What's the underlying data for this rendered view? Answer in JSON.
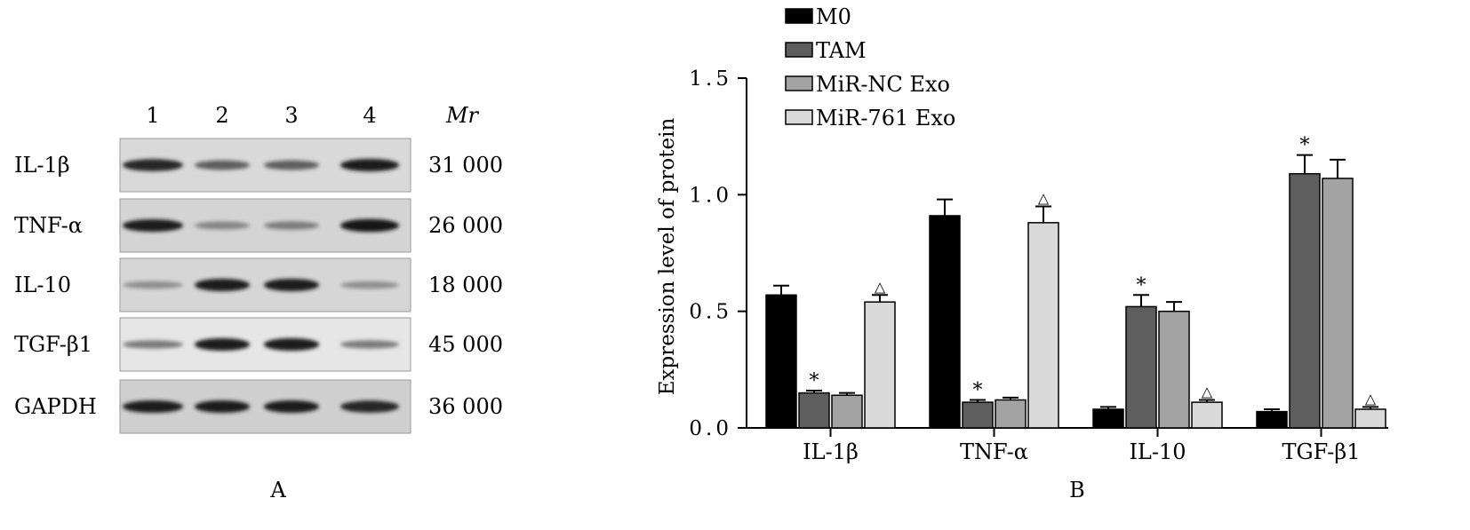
{
  "panel_a": {
    "label": "A",
    "lanes": [
      "1",
      "2",
      "3",
      "4"
    ],
    "mr_header": "Mr",
    "rows": [
      {
        "protein": "IL-1β",
        "mr": "31 000",
        "bg": "#d9d9d9",
        "band_intensity": [
          0.85,
          0.55,
          0.55,
          0.9
        ]
      },
      {
        "protein": "TNF-α",
        "mr": "26 000",
        "bg": "#d4d4d4",
        "band_intensity": [
          0.9,
          0.35,
          0.4,
          0.95
        ]
      },
      {
        "protein": "IL-10",
        "mr": "18 000",
        "bg": "#d6d6d6",
        "band_intensity": [
          0.3,
          0.9,
          0.9,
          0.3
        ]
      },
      {
        "protein": "TGF-β1",
        "mr": "45 000",
        "bg": "#e6e6e6",
        "band_intensity": [
          0.4,
          0.9,
          0.9,
          0.4
        ]
      },
      {
        "protein": "GAPDH",
        "mr": "36 000",
        "bg": "#cfcfcf",
        "band_intensity": [
          0.9,
          0.9,
          0.9,
          0.85
        ]
      }
    ]
  },
  "chart_data": {
    "type": "bar",
    "label": "B",
    "categories": [
      "IL-1β",
      "TNF-α",
      "IL-10",
      "TGF-β1"
    ],
    "ylabel": "Expression level of protein",
    "ylim": [
      0,
      1.5
    ],
    "yticks": [
      "0.0",
      "0.5",
      "1.0",
      "1.5"
    ],
    "legend_position": "top-left",
    "series": [
      {
        "name": "M0",
        "color": "#000000",
        "values": [
          0.57,
          0.91,
          0.08,
          0.07
        ],
        "errors": [
          0.04,
          0.07,
          0.01,
          0.01
        ],
        "markers": [
          "",
          "",
          "",
          ""
        ]
      },
      {
        "name": "TAM",
        "color": "#5e5e5e",
        "values": [
          0.15,
          0.11,
          0.52,
          1.09
        ],
        "errors": [
          0.01,
          0.01,
          0.05,
          0.08
        ],
        "markers": [
          "*",
          "*",
          "*",
          "*"
        ]
      },
      {
        "name": "MiR-NC Exo",
        "color": "#a3a3a3",
        "values": [
          0.14,
          0.12,
          0.5,
          1.07
        ],
        "errors": [
          0.01,
          0.01,
          0.04,
          0.08
        ],
        "markers": [
          "",
          "",
          "",
          ""
        ]
      },
      {
        "name": "MiR-761 Exo",
        "color": "#d9d9d9",
        "values": [
          0.54,
          0.88,
          0.11,
          0.08
        ],
        "errors": [
          0.03,
          0.07,
          0.01,
          0.01
        ],
        "markers": [
          "△",
          "△",
          "△",
          "△"
        ]
      }
    ]
  }
}
